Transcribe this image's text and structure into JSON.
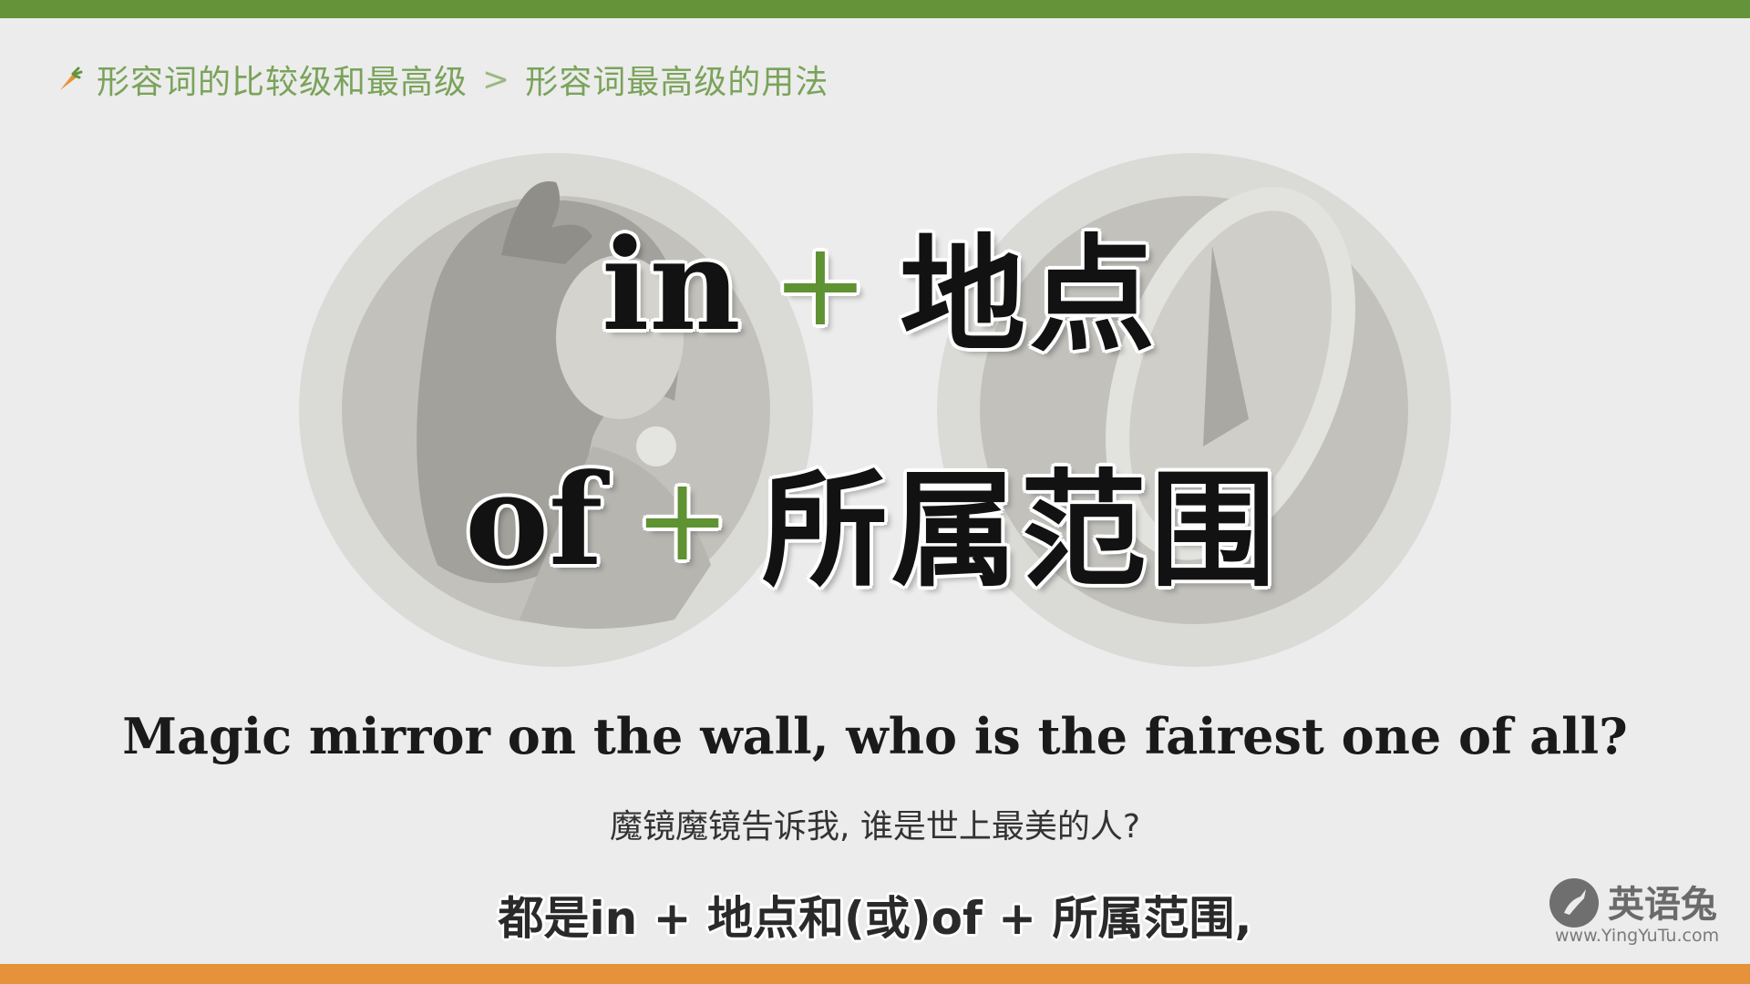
{
  "breadcrumb": {
    "icon": "carrot-icon",
    "parent": "形容词的比较级和最高级",
    "separator": ">",
    "current": "形容词最高级的用法"
  },
  "headline": {
    "line1": {
      "en": "in",
      "plus": "+",
      "cn": "地点"
    },
    "line2": {
      "en": "of",
      "plus": "+",
      "cn": "所属范围"
    }
  },
  "example": {
    "english": "Magic mirror on the wall, who is the fairest one of all?",
    "chinese": "魔镜魔镜告诉我, 谁是世上最美的人?"
  },
  "subtitle": "都是in + 地点和(或)of + 所属范围,",
  "logo": {
    "name": "英语兔",
    "url": "www.YingYuTu.com"
  },
  "colors": {
    "top_bar": "#64933a",
    "bottom_bar": "#e5923a",
    "breadcrumb": "#7aa35a",
    "plus": "#5f9232",
    "background": "#ececec"
  }
}
